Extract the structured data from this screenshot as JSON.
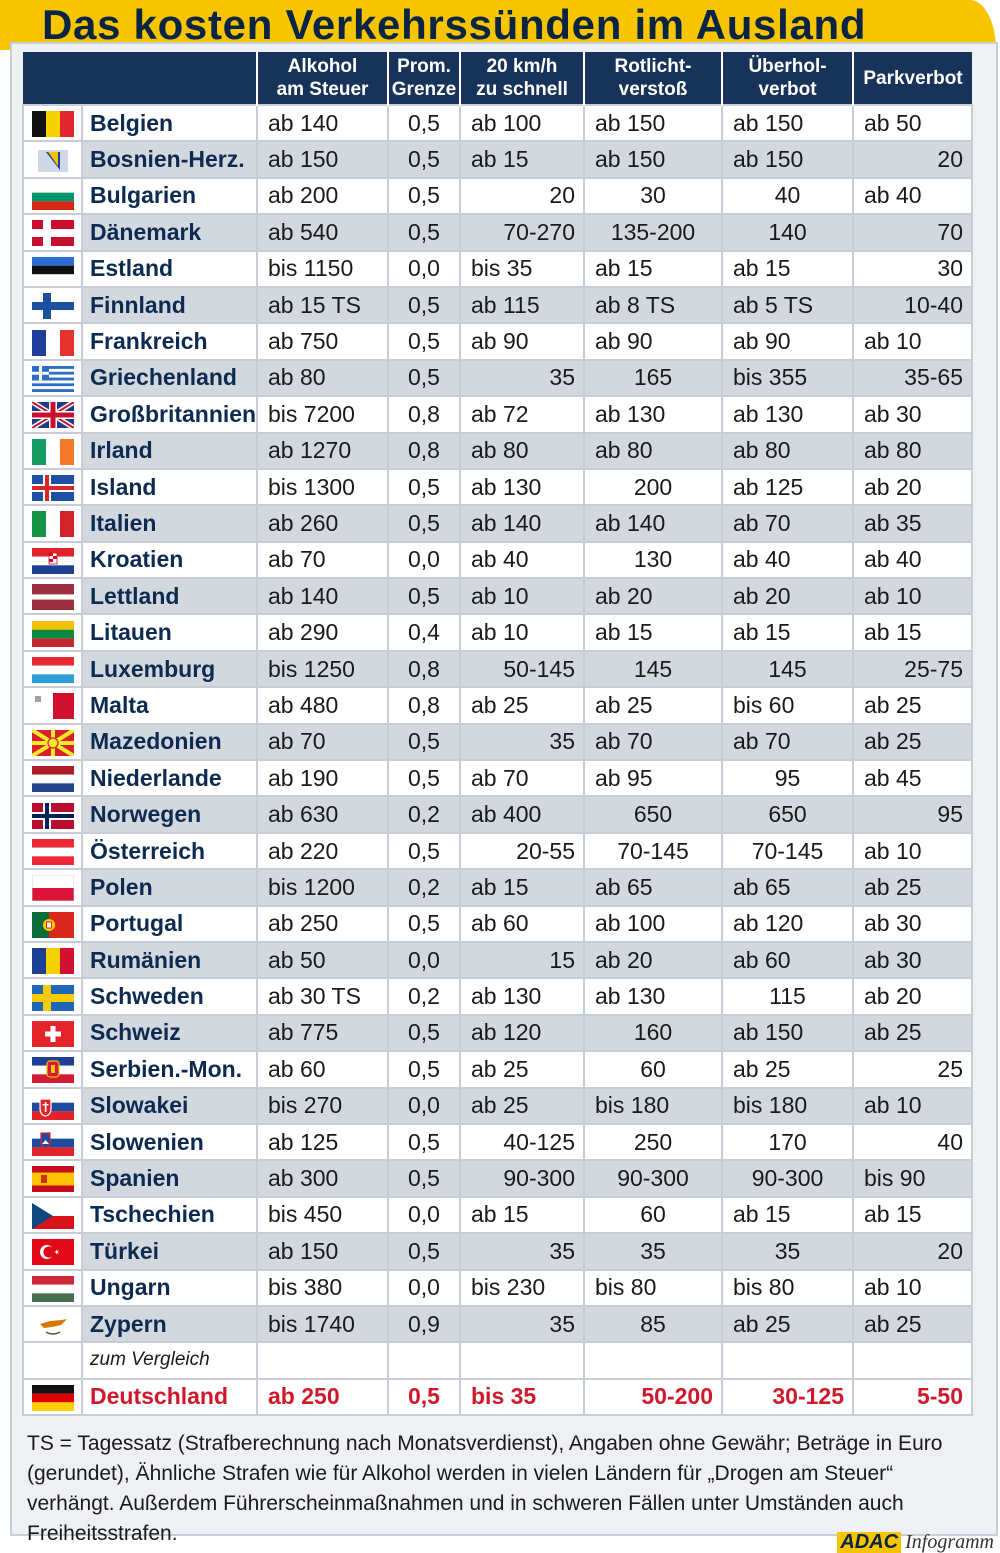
{
  "title": "Das kosten Verkehrssünden im Ausland",
  "colors": {
    "header_bg": "#17335a",
    "accent_yellow": "#f7c400",
    "highlight_red": "#d0182d",
    "row_alt": "#d3d8df"
  },
  "columns": [
    "Alkohol am Steuer",
    "Prom. Grenze",
    "20 km/h zu schnell",
    "Rotlicht-verstoß",
    "Überhol-verbot",
    "Parkverbot"
  ],
  "columns_html_lines": [
    [
      "Alkohol",
      "am Steuer"
    ],
    [
      "Prom.",
      "Grenze"
    ],
    [
      "20 km/h",
      "zu schnell"
    ],
    [
      "Rotlicht-",
      "verstoß"
    ],
    [
      "Überhol-",
      "verbot"
    ],
    [
      "Parkverbot"
    ]
  ],
  "rows": [
    {
      "country": "Belgien",
      "flag": "flag-belgium",
      "values": [
        "ab 140",
        "0,5",
        "ab 100",
        "ab 150",
        "ab 150",
        "ab 50"
      ]
    },
    {
      "country": "Bosnien-Herz.",
      "flag": "flag-bosnia",
      "values": [
        "ab 150",
        "0,5",
        "ab 15",
        "ab 150",
        "ab 150",
        "20"
      ]
    },
    {
      "country": "Bulgarien",
      "flag": "flag-bulgaria",
      "values": [
        "ab 200",
        "0,5",
        "20",
        "30",
        "40",
        "ab 40"
      ]
    },
    {
      "country": "Dänemark",
      "flag": "flag-denmark",
      "values": [
        "ab 540",
        "0,5",
        "70-270",
        "135-200",
        "140",
        "70"
      ]
    },
    {
      "country": "Estland",
      "flag": "flag-estonia",
      "values": [
        "bis 1150",
        "0,0",
        "bis 35",
        "ab 15",
        "ab 15",
        "30"
      ]
    },
    {
      "country": "Finnland",
      "flag": "flag-finland",
      "values": [
        "ab 15 TS",
        "0,5",
        "ab 115",
        "ab 8 TS",
        "ab 5 TS",
        "10-40"
      ]
    },
    {
      "country": "Frankreich",
      "flag": "flag-france",
      "values": [
        "ab 750",
        "0,5",
        "ab 90",
        "ab 90",
        "ab 90",
        "ab 10"
      ]
    },
    {
      "country": "Griechenland",
      "flag": "flag-greece",
      "values": [
        "ab 80",
        "0,5",
        "35",
        "165",
        "bis 355",
        "35-65"
      ]
    },
    {
      "country": "Großbritannien",
      "flag": "flag-uk",
      "values": [
        "bis 7200",
        "0,8",
        "ab 72",
        "ab 130",
        "ab 130",
        "ab 30"
      ]
    },
    {
      "country": "Irland",
      "flag": "flag-ireland",
      "values": [
        "ab 1270",
        "0,8",
        "ab 80",
        "ab 80",
        "ab 80",
        "ab 80"
      ]
    },
    {
      "country": "Island",
      "flag": "flag-iceland",
      "values": [
        "bis 1300",
        "0,5",
        "ab 130",
        "200",
        "ab 125",
        "ab 20"
      ]
    },
    {
      "country": "Italien",
      "flag": "flag-italy",
      "values": [
        "ab 260",
        "0,5",
        "ab 140",
        "ab 140",
        "ab 70",
        "ab 35"
      ]
    },
    {
      "country": "Kroatien",
      "flag": "flag-croatia",
      "values": [
        "ab 70",
        "0,0",
        "ab 40",
        "130",
        "ab 40",
        "ab 40"
      ]
    },
    {
      "country": "Lettland",
      "flag": "flag-latvia",
      "values": [
        "ab 140",
        "0,5",
        "ab 10",
        "ab 20",
        "ab 20",
        "ab 10"
      ]
    },
    {
      "country": "Litauen",
      "flag": "flag-lithuania",
      "values": [
        "ab 290",
        "0,4",
        "ab 10",
        "ab 15",
        "ab 15",
        "ab 15"
      ]
    },
    {
      "country": "Luxemburg",
      "flag": "flag-luxembourg",
      "values": [
        "bis 1250",
        "0,8",
        "50-145",
        "145",
        "145",
        "25-75"
      ]
    },
    {
      "country": "Malta",
      "flag": "flag-malta",
      "values": [
        "ab 480",
        "0,8",
        "ab 25",
        "ab 25",
        "bis 60",
        "ab 25"
      ]
    },
    {
      "country": "Mazedonien",
      "flag": "flag-macedonia",
      "values": [
        "ab 70",
        "0,5",
        "35",
        "ab 70",
        "ab 70",
        "ab 25"
      ]
    },
    {
      "country": "Niederlande",
      "flag": "flag-netherlands",
      "values": [
        "ab 190",
        "0,5",
        "ab 70",
        "ab 95",
        "95",
        "ab 45"
      ]
    },
    {
      "country": "Norwegen",
      "flag": "flag-norway",
      "values": [
        "ab 630",
        "0,2",
        "ab 400",
        "650",
        "650",
        "95"
      ]
    },
    {
      "country": "Österreich",
      "flag": "flag-austria",
      "values": [
        "ab 220",
        "0,5",
        "20-55",
        "70-145",
        "70-145",
        "ab 10"
      ]
    },
    {
      "country": "Polen",
      "flag": "flag-poland",
      "values": [
        "bis 1200",
        "0,2",
        "ab 15",
        "ab 65",
        "ab 65",
        "ab 25"
      ]
    },
    {
      "country": "Portugal",
      "flag": "flag-portugal",
      "values": [
        "ab 250",
        "0,5",
        "ab 60",
        "ab 100",
        "ab 120",
        "ab 30"
      ]
    },
    {
      "country": "Rumänien",
      "flag": "flag-romania",
      "values": [
        "ab 50",
        "0,0",
        "15",
        "ab 20",
        "ab 60",
        "ab 30"
      ]
    },
    {
      "country": "Schweden",
      "flag": "flag-sweden",
      "values": [
        "ab 30 TS",
        "0,2",
        "ab 130",
        "ab 130",
        "115",
        "ab 20"
      ]
    },
    {
      "country": "Schweiz",
      "flag": "flag-switzerland",
      "values": [
        "ab 775",
        "0,5",
        "ab 120",
        "160",
        "ab 150",
        "ab 25"
      ]
    },
    {
      "country": "Serbien.-Mon.",
      "flag": "flag-serbia-montenegro",
      "values": [
        "ab 60",
        "0,5",
        "ab 25",
        "60",
        "ab 25",
        "25"
      ]
    },
    {
      "country": "Slowakei",
      "flag": "flag-slovakia",
      "values": [
        "bis 270",
        "0,0",
        "ab 25",
        "bis 180",
        "bis 180",
        "ab 10"
      ]
    },
    {
      "country": "Slowenien",
      "flag": "flag-slovenia",
      "values": [
        "ab 125",
        "0,5",
        "40-125",
        "250",
        "170",
        "40"
      ]
    },
    {
      "country": "Spanien",
      "flag": "flag-spain",
      "values": [
        "ab 300",
        "0,5",
        "90-300",
        "90-300",
        "90-300",
        "bis 90"
      ]
    },
    {
      "country": "Tschechien",
      "flag": "flag-czech",
      "values": [
        "bis 450",
        "0,0",
        "ab 15",
        "60",
        "ab 15",
        "ab 15"
      ]
    },
    {
      "country": "Türkei",
      "flag": "flag-turkey",
      "values": [
        "ab 150",
        "0,5",
        "35",
        "35",
        "35",
        "20"
      ]
    },
    {
      "country": "Ungarn",
      "flag": "flag-hungary",
      "values": [
        "bis 380",
        "0,0",
        "bis 230",
        "bis 80",
        "bis 80",
        "ab 10"
      ]
    },
    {
      "country": "Zypern",
      "flag": "flag-cyprus",
      "values": [
        "bis 1740",
        "0,9",
        "35",
        "85",
        "ab 25",
        "ab 25"
      ]
    }
  ],
  "comparison_label": "zum Vergleich",
  "germany": {
    "country": "Deutschland",
    "flag": "flag-germany",
    "values": [
      "ab 250",
      "0,5",
      "bis 35",
      "50-200",
      "30-125",
      "5-50"
    ]
  },
  "footnote": "TS = Tagessatz (Strafberechnung nach Monatsverdienst), Angaben ohne Gewähr; Beträge in Euro (gerundet), Ähnliche Strafen wie für Alkohol werden in vielen Ländern für „Drogen am Steuer“ verhängt. Außerdem Führerscheinmaßnahmen und in schweren Fällen unter Umständen auch Freiheitsstrafen.",
  "brand": {
    "logo": "ADAC",
    "label": "Infogramm"
  }
}
